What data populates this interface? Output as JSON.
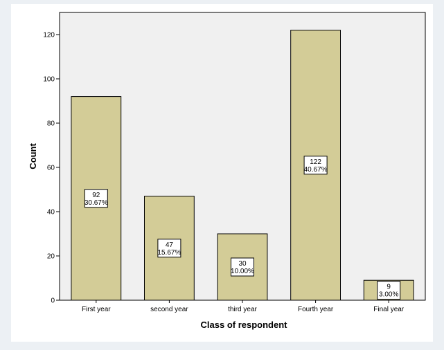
{
  "chart_data": {
    "type": "bar",
    "categories": [
      "First year",
      "second year",
      "third year",
      "Fourth year",
      "Final year"
    ],
    "values": [
      92,
      47,
      30,
      122,
      9
    ],
    "percent_labels": [
      "30.67%",
      "15.67%",
      "10.00%",
      "40.67%",
      "3.00%"
    ],
    "title": "",
    "xlabel": "Class of respondent",
    "ylabel": "Count",
    "ylim": [
      0,
      130
    ],
    "yticks": [
      0,
      20,
      40,
      60,
      80,
      100,
      120
    ],
    "grid": false,
    "bar_color": "#d3cc97",
    "plot_background": "#f0f0f0"
  }
}
